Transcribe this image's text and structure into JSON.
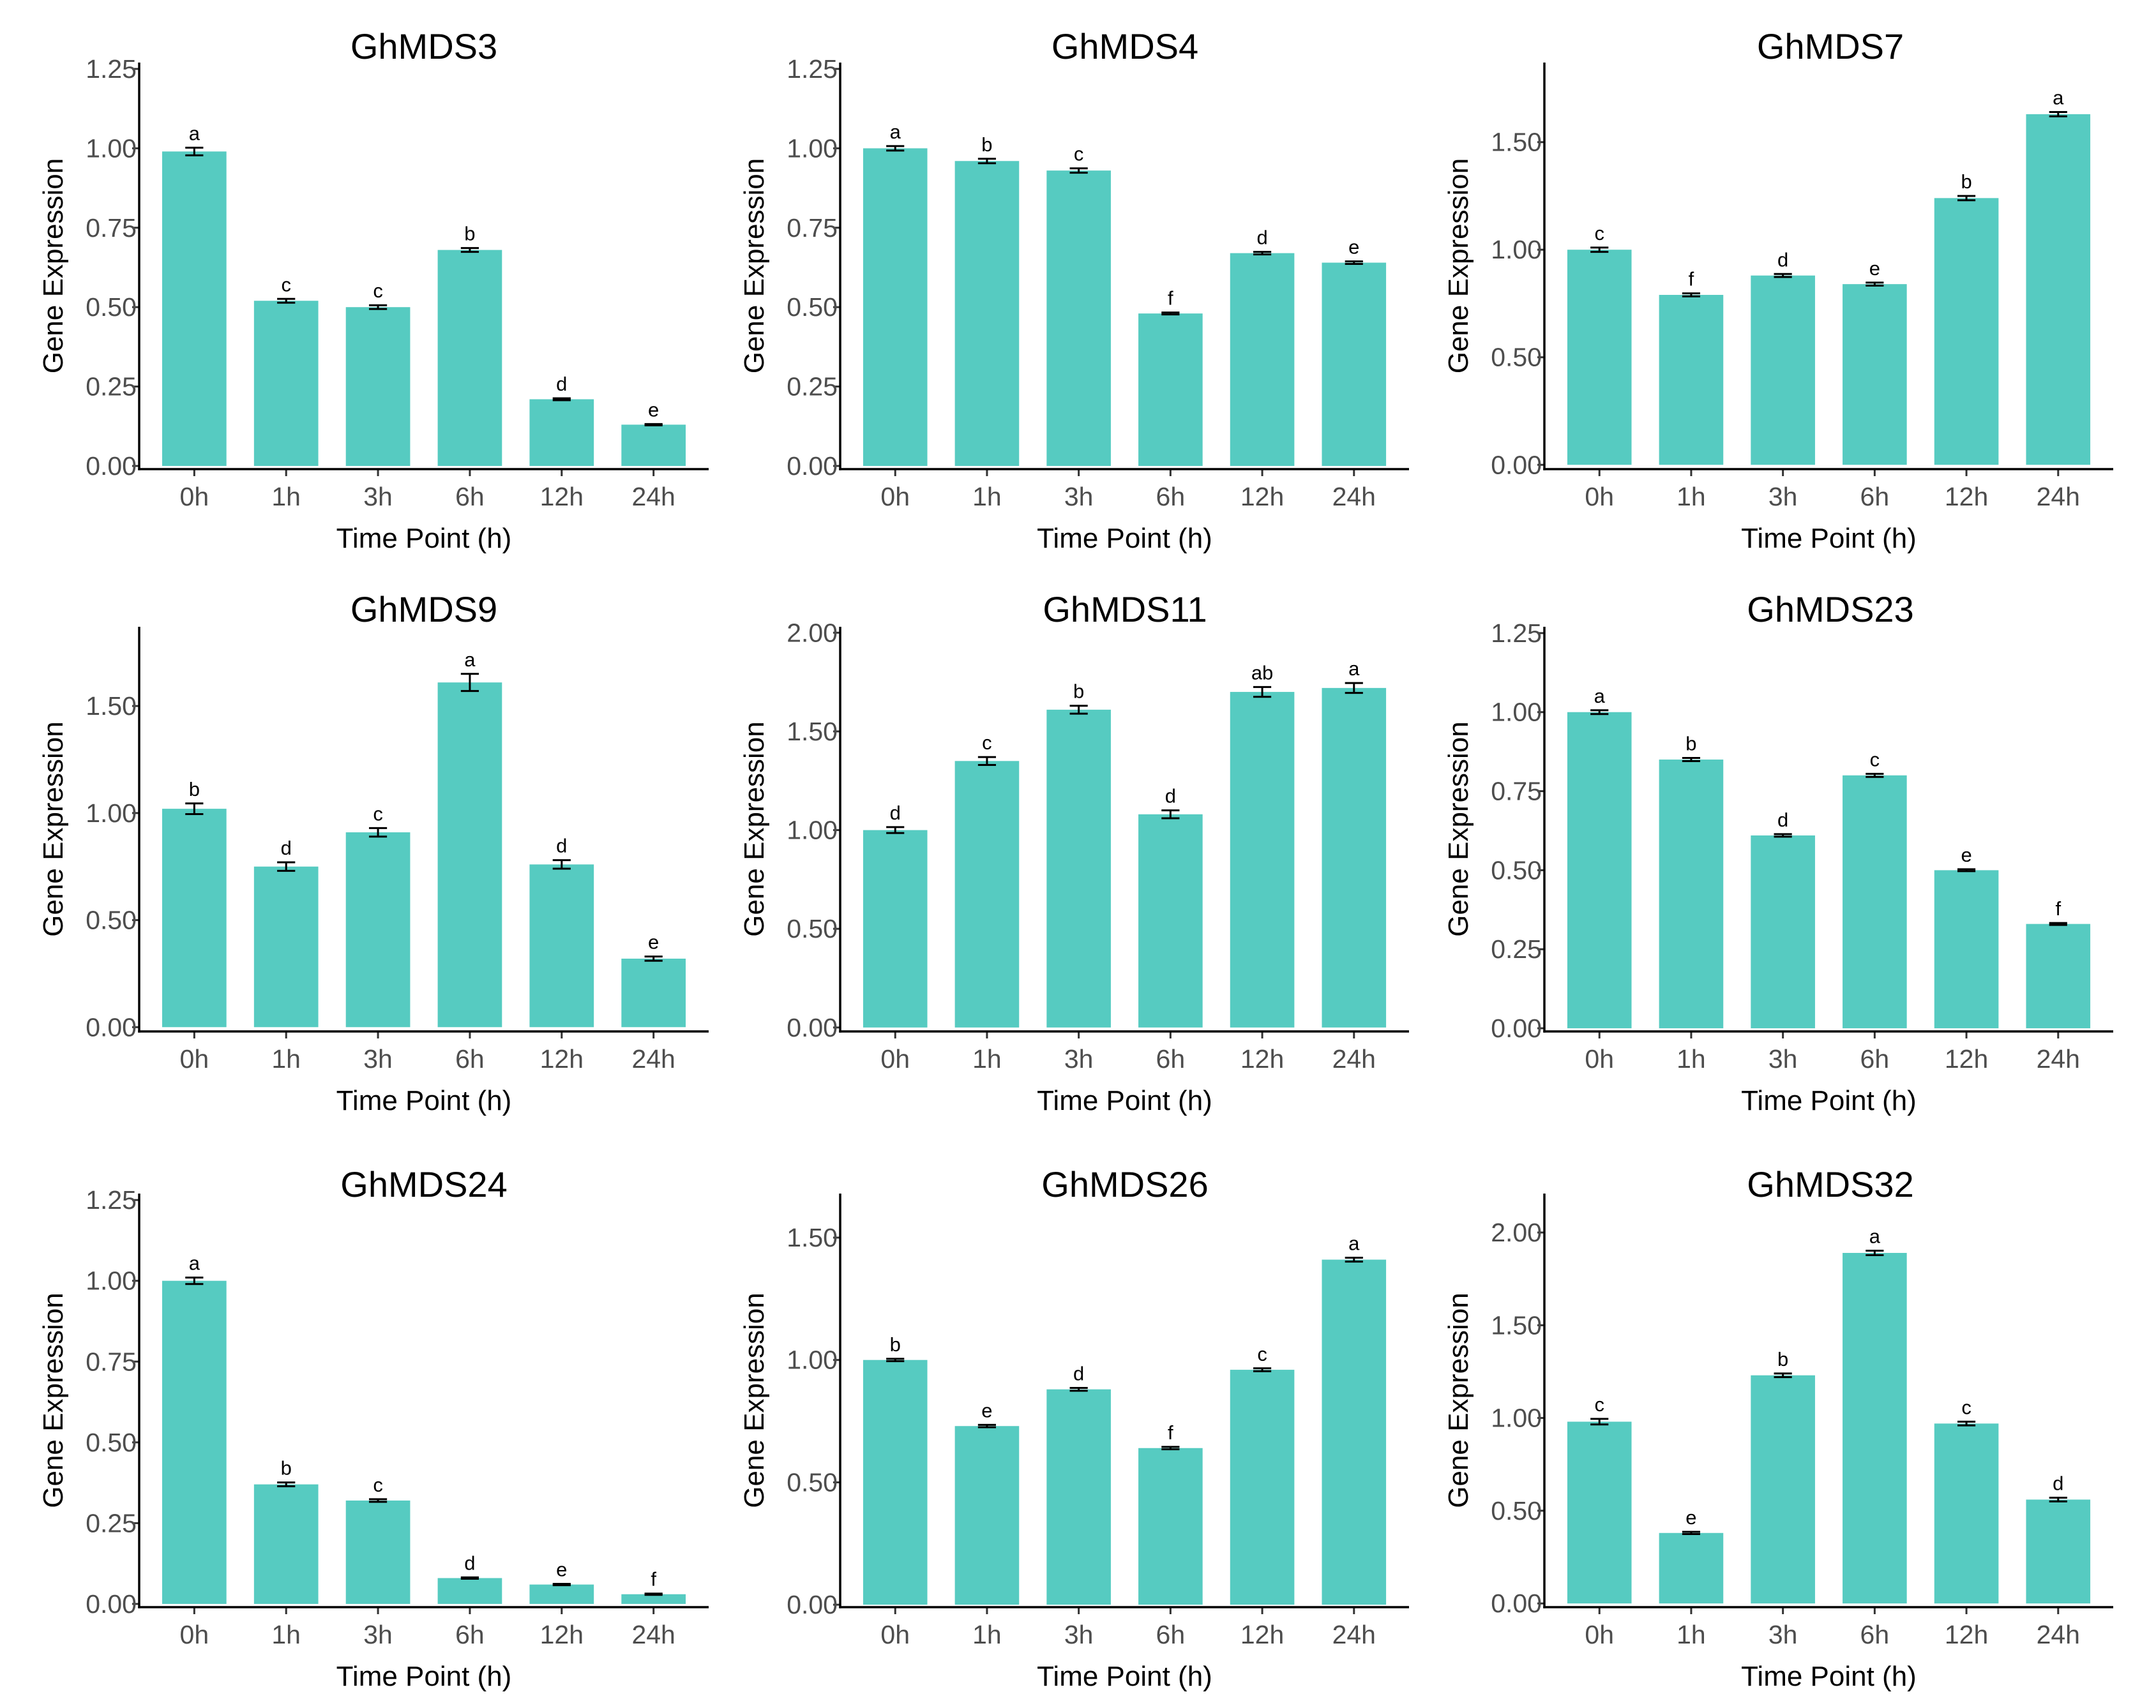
{
  "figure": {
    "bar_color": "#56cbc1",
    "axis_color": "#000000"
  },
  "chart_data": [
    {
      "type": "bar",
      "title": "GhMDS3",
      "xlabel": "Time Point (h)",
      "ylabel": "Gene Expression",
      "categories": [
        "0h",
        "1h",
        "3h",
        "6h",
        "12h",
        "24h"
      ],
      "values": [
        0.99,
        0.52,
        0.5,
        0.68,
        0.21,
        0.13
      ],
      "errors": [
        0.012,
        0.006,
        0.006,
        0.006,
        0.003,
        0.002
      ],
      "letters": [
        "a",
        "c",
        "c",
        "b",
        "d",
        "e"
      ],
      "yticks": [
        0,
        0.25,
        0.5,
        0.75,
        1.0,
        1.25
      ],
      "ytick_labels": [
        "0.00",
        "0.25",
        "0.50",
        "0.75",
        "1.00",
        "1.25"
      ],
      "ylim": [
        -0.01,
        1.27
      ]
    },
    {
      "type": "bar",
      "title": "GhMDS4",
      "xlabel": "Time Point (h)",
      "ylabel": "Gene Expression",
      "categories": [
        "0h",
        "1h",
        "3h",
        "6h",
        "12h",
        "24h"
      ],
      "values": [
        1.0,
        0.96,
        0.93,
        0.48,
        0.67,
        0.64
      ],
      "errors": [
        0.007,
        0.007,
        0.007,
        0.003,
        0.004,
        0.004
      ],
      "letters": [
        "a",
        "b",
        "c",
        "f",
        "d",
        "e"
      ],
      "yticks": [
        0,
        0.25,
        0.5,
        0.75,
        1.0,
        1.25
      ],
      "ytick_labels": [
        "0.00",
        "0.25",
        "0.50",
        "0.75",
        "1.00",
        "1.25"
      ],
      "ylim": [
        -0.01,
        1.27
      ]
    },
    {
      "type": "bar",
      "title": "GhMDS7",
      "xlabel": "Time Point (h)",
      "ylabel": "Gene Expression",
      "categories": [
        "0h",
        "1h",
        "3h",
        "6h",
        "12h",
        "24h"
      ],
      "values": [
        1.0,
        0.79,
        0.88,
        0.84,
        1.24,
        1.63
      ],
      "errors": [
        0.01,
        0.007,
        0.007,
        0.007,
        0.01,
        0.01
      ],
      "letters": [
        "c",
        "f",
        "d",
        "e",
        "b",
        "a"
      ],
      "yticks": [
        0,
        0.5,
        1.0,
        1.5
      ],
      "ytick_labels": [
        "0.00",
        "0.50",
        "1.00",
        "1.50"
      ],
      "ylim": [
        -0.02,
        1.87
      ]
    },
    {
      "type": "bar",
      "title": "GhMDS9",
      "xlabel": "Time Point (h)",
      "ylabel": "Gene Expression",
      "categories": [
        "0h",
        "1h",
        "3h",
        "6h",
        "12h",
        "24h"
      ],
      "values": [
        1.02,
        0.75,
        0.91,
        1.61,
        0.76,
        0.32
      ],
      "errors": [
        0.025,
        0.02,
        0.02,
        0.04,
        0.02,
        0.01
      ],
      "letters": [
        "b",
        "d",
        "c",
        "a",
        "d",
        "e"
      ],
      "yticks": [
        0,
        0.5,
        1.0,
        1.5
      ],
      "ytick_labels": [
        "0.00",
        "0.50",
        "1.00",
        "1.50"
      ],
      "ylim": [
        -0.02,
        1.87
      ]
    },
    {
      "type": "bar",
      "title": "GhMDS11",
      "xlabel": "Time Point (h)",
      "ylabel": "Gene Expression",
      "categories": [
        "0h",
        "1h",
        "3h",
        "6h",
        "12h",
        "24h"
      ],
      "values": [
        1.0,
        1.35,
        1.61,
        1.08,
        1.7,
        1.72
      ],
      "errors": [
        0.015,
        0.02,
        0.02,
        0.02,
        0.025,
        0.025
      ],
      "letters": [
        "d",
        "c",
        "b",
        "d",
        "ab",
        "a"
      ],
      "yticks": [
        0,
        0.5,
        1.0,
        1.5,
        2.0
      ],
      "ytick_labels": [
        "0.00",
        "0.50",
        "1.00",
        "1.50",
        "2.00"
      ],
      "ylim": [
        -0.02,
        2.03
      ]
    },
    {
      "type": "bar",
      "title": "GhMDS23",
      "xlabel": "Time Point (h)",
      "ylabel": "Gene Expression",
      "categories": [
        "0h",
        "1h",
        "3h",
        "6h",
        "12h",
        "24h"
      ],
      "values": [
        1.0,
        0.85,
        0.61,
        0.8,
        0.5,
        0.33
      ],
      "errors": [
        0.006,
        0.005,
        0.004,
        0.005,
        0.003,
        0.003
      ],
      "letters": [
        "a",
        "b",
        "d",
        "c",
        "e",
        "f"
      ],
      "yticks": [
        0,
        0.25,
        0.5,
        0.75,
        1.0,
        1.25
      ],
      "ytick_labels": [
        "0.00",
        "0.25",
        "0.50",
        "0.75",
        "1.00",
        "1.25"
      ],
      "ylim": [
        -0.01,
        1.27
      ]
    },
    {
      "type": "bar",
      "title": "GhMDS24",
      "xlabel": "Time Point (h)",
      "ylabel": "Gene Expression",
      "categories": [
        "0h",
        "1h",
        "3h",
        "6h",
        "12h",
        "24h"
      ],
      "values": [
        1.0,
        0.37,
        0.32,
        0.08,
        0.06,
        0.03
      ],
      "errors": [
        0.01,
        0.006,
        0.004,
        0.002,
        0.002,
        0.002
      ],
      "letters": [
        "a",
        "b",
        "c",
        "d",
        "e",
        "f"
      ],
      "yticks": [
        0,
        0.25,
        0.5,
        0.75,
        1.0,
        1.25
      ],
      "ytick_labels": [
        "0.00",
        "0.25",
        "0.50",
        "0.75",
        "1.00",
        "1.25"
      ],
      "ylim": [
        -0.01,
        1.27
      ]
    },
    {
      "type": "bar",
      "title": "GhMDS26",
      "xlabel": "Time Point (h)",
      "ylabel": "Gene Expression",
      "categories": [
        "0h",
        "1h",
        "3h",
        "6h",
        "12h",
        "24h"
      ],
      "values": [
        1.0,
        0.73,
        0.88,
        0.64,
        0.96,
        1.41
      ],
      "errors": [
        0.005,
        0.005,
        0.006,
        0.005,
        0.006,
        0.008
      ],
      "letters": [
        "b",
        "e",
        "d",
        "f",
        "c",
        "a"
      ],
      "yticks": [
        0,
        0.5,
        1.0,
        1.5
      ],
      "ytick_labels": [
        "0.00",
        "0.50",
        "1.00",
        "1.50"
      ],
      "ylim": [
        -0.01,
        1.68
      ]
    },
    {
      "type": "bar",
      "title": "GhMDS32",
      "xlabel": "Time Point (h)",
      "ylabel": "Gene Expression",
      "categories": [
        "0h",
        "1h",
        "3h",
        "6h",
        "12h",
        "24h"
      ],
      "values": [
        0.98,
        0.38,
        1.23,
        1.89,
        0.97,
        0.56
      ],
      "errors": [
        0.015,
        0.006,
        0.01,
        0.012,
        0.01,
        0.01
      ],
      "letters": [
        "c",
        "e",
        "b",
        "a",
        "c",
        "d"
      ],
      "yticks": [
        0,
        0.5,
        1.0,
        1.5,
        2.0
      ],
      "ytick_labels": [
        "0.00",
        "0.50",
        "1.00",
        "1.50",
        "2.00"
      ],
      "ylim": [
        -0.02,
        2.21
      ]
    }
  ]
}
